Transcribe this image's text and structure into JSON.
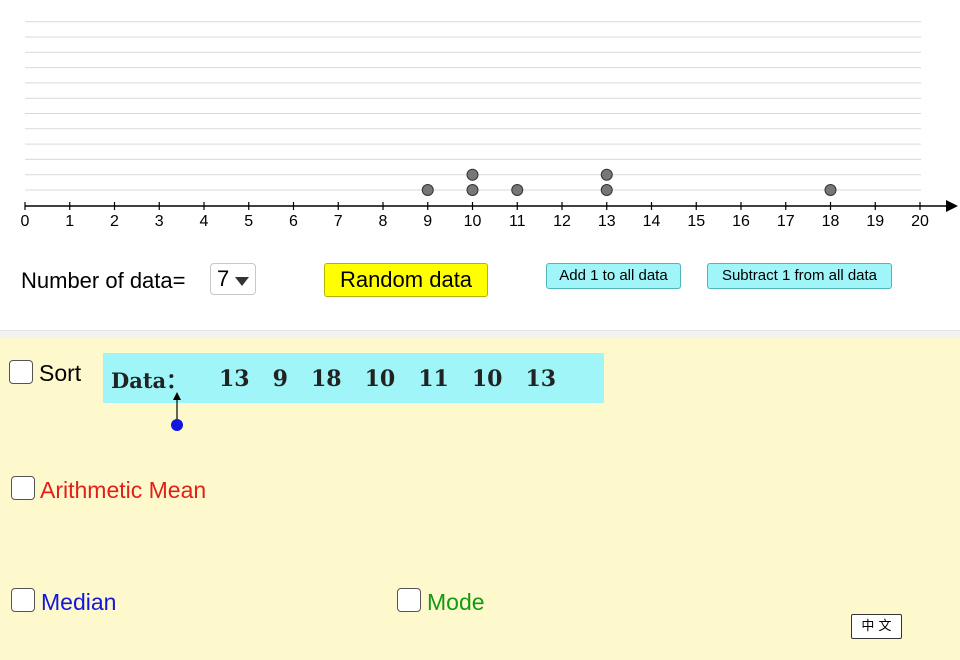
{
  "dot_plot": {
    "axis_min": 0,
    "axis_max": 20,
    "tick_labels": [
      "0",
      "1",
      "2",
      "3",
      "4",
      "5",
      "6",
      "7",
      "8",
      "9",
      "10",
      "11",
      "12",
      "13",
      "14",
      "15",
      "16",
      "17",
      "18",
      "19",
      "20"
    ],
    "point_color": "#777777"
  },
  "controls": {
    "number_of_data_label": "Number of data=",
    "number_of_data_value": "7",
    "random_button": "Random data",
    "add_button": "Add 1 to all data",
    "subtract_button": "Subtract 1 from all data"
  },
  "data_panel": {
    "sort_label": "Sort",
    "title": "Data：",
    "values": [
      "13",
      "9",
      "18",
      "10",
      "11",
      "10",
      "13"
    ]
  },
  "stats": {
    "mean_label": "Arithmetic Mean",
    "mean_color": "#e0201b",
    "median_label": "Median",
    "median_color": "#1515e0",
    "mode_label": "Mode",
    "mode_color": "#129b12"
  },
  "language_button": "中 文",
  "colors": {
    "panel_background": "#fdf9cc",
    "random_button": "#ffff00",
    "cyan_button": "#9ff5f8",
    "slider_point": "#1515e0"
  }
}
